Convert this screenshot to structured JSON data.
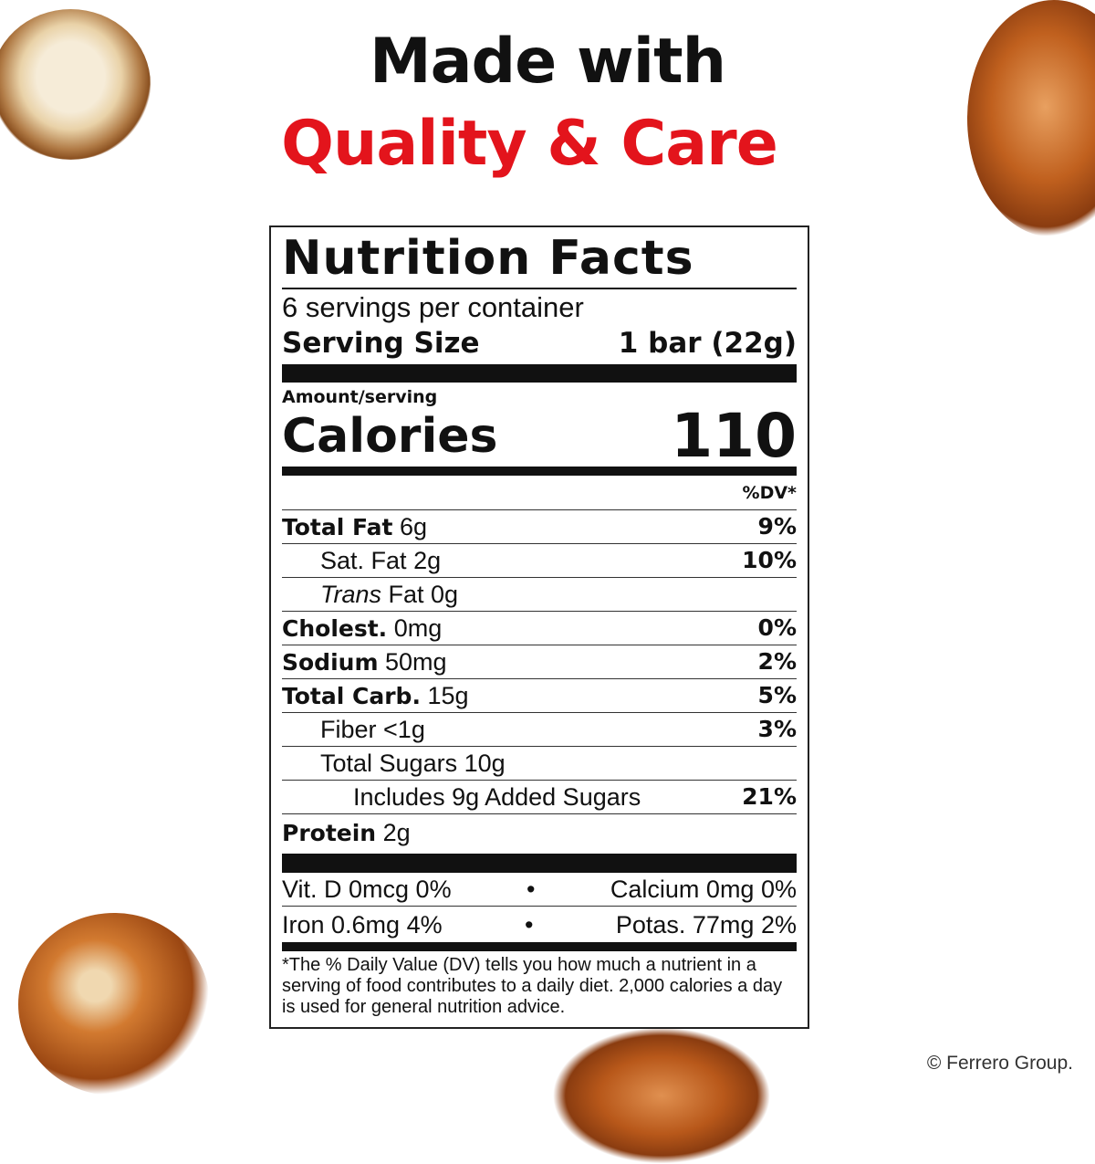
{
  "headline": {
    "line1": "Made with",
    "line2": "Quality & Care",
    "accent": "#e3141c"
  },
  "label": {
    "title": "Nutrition Facts",
    "servings": "6 servings per container",
    "serving_size_label": "Serving Size",
    "serving_size_value": "1 bar (22g)",
    "amount_per_serving": "Amount/serving",
    "calories_label": "Calories",
    "calories_value": "110",
    "dv_header": "%DV*",
    "nutrients": [
      {
        "name": "Total Fat",
        "amount": "6g",
        "dv": "9%"
      },
      {
        "name": "Sat. Fat",
        "amount": "2g",
        "dv": "10%"
      },
      {
        "name": "Trans",
        "amount": "Fat 0g",
        "dv": ""
      },
      {
        "name": "Cholest.",
        "amount": "0mg",
        "dv": "0%"
      },
      {
        "name": "Sodium",
        "amount": "50mg",
        "dv": "2%"
      },
      {
        "name": "Total Carb.",
        "amount": "15g",
        "dv": "5%"
      },
      {
        "name": "Fiber",
        "amount": "<1g",
        "dv": "3%"
      },
      {
        "name": "Total Sugars",
        "amount": "10g",
        "dv": ""
      },
      {
        "name": "Includes 9g Added Sugars",
        "amount": "",
        "dv": "21%"
      },
      {
        "name": "Protein",
        "amount": "2g",
        "dv": ""
      }
    ],
    "vitamins": [
      {
        "left": "Vit. D 0mcg 0%",
        "right": "Calcium 0mg 0%"
      },
      {
        "left": "Iron 0.6mg 4%",
        "right": "Potas. 77mg 2%"
      }
    ],
    "bullet": "•",
    "footnote": "*The % Daily Value (DV) tells you how much a nutrient in a serving of food contributes to a daily diet. 2,000 calories a day is used for general nutrition advice."
  },
  "copyright": "© Ferrero Group."
}
